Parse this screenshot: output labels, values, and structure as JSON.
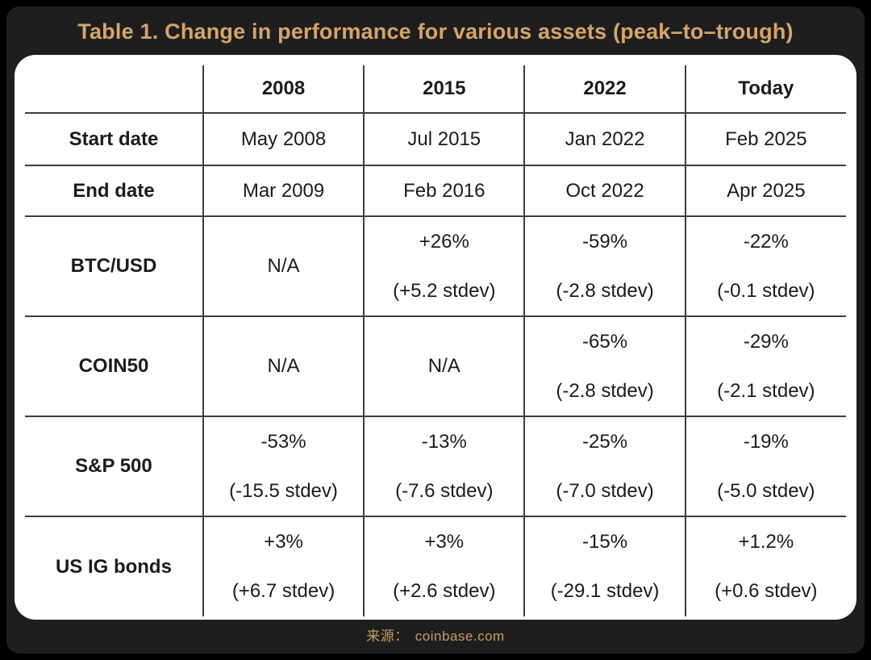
{
  "title": "Table 1. Change in performance for various assets (peak–to–trough)",
  "source": {
    "label": "来源：",
    "domain": "coinbase.com"
  },
  "colors": {
    "background": "#000000",
    "panel": "#1e1e1f",
    "title_gold": "#d7a468",
    "source_gold": "#c79e61",
    "card_white": "#ffffff",
    "grid_line": "#3e3e3e",
    "text": "#1c1c1c"
  },
  "chart_data": {
    "type": "table",
    "title": "Table 1. Change in performance for various assets (peak–to–trough)",
    "columns": [
      "",
      "2008",
      "2015",
      "2022",
      "Today"
    ],
    "rows": [
      {
        "label": "Start date",
        "cells": [
          [
            "May 2008"
          ],
          [
            "Jul 2015"
          ],
          [
            "Jan 2022"
          ],
          [
            "Feb 2025"
          ]
        ]
      },
      {
        "label": "End date",
        "cells": [
          [
            "Mar 2009"
          ],
          [
            "Feb 2016"
          ],
          [
            "Oct 2022"
          ],
          [
            "Apr 2025"
          ]
        ]
      },
      {
        "label": "BTC/USD",
        "cells": [
          [
            "N/A"
          ],
          [
            "+26%",
            "(+5.2 stdev)"
          ],
          [
            "-59%",
            "(-2.8 stdev)"
          ],
          [
            "-22%",
            "(-0.1 stdev)"
          ]
        ]
      },
      {
        "label": "COIN50",
        "cells": [
          [
            "N/A"
          ],
          [
            "N/A"
          ],
          [
            "-65%",
            "(-2.8 stdev)"
          ],
          [
            "-29%",
            "(-2.1 stdev)"
          ]
        ]
      },
      {
        "label": "S&P 500",
        "cells": [
          [
            "-53%",
            "(-15.5 stdev)"
          ],
          [
            "-13%",
            "(-7.6 stdev)"
          ],
          [
            "-25%",
            "(-7.0 stdev)"
          ],
          [
            "-19%",
            "(-5.0 stdev)"
          ]
        ]
      },
      {
        "label": "US IG bonds",
        "cells": [
          [
            "+3%",
            "(+6.7 stdev)"
          ],
          [
            "+3%",
            "(+2.6 stdev)"
          ],
          [
            "-15%",
            "(-29.1 stdev)"
          ],
          [
            "+1.2%",
            "(+0.6 stdev)"
          ]
        ]
      }
    ]
  }
}
